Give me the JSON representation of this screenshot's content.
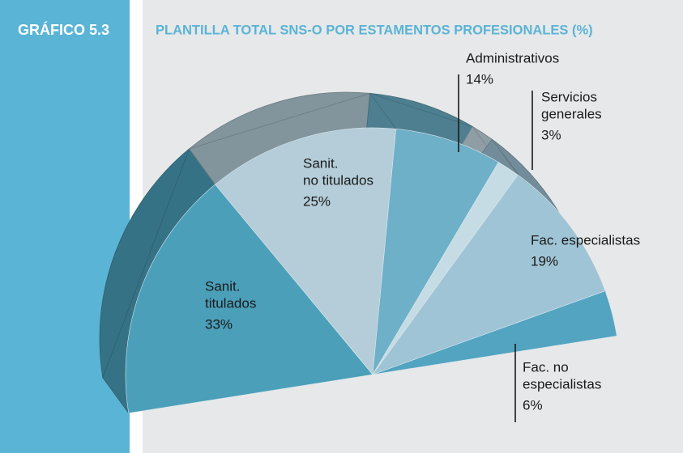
{
  "chart_data": {
    "type": "pie",
    "figure_label": "GRÁFICO 5.3",
    "title": "PLANTILLA TOTAL SNS-O POR ESTAMENTOS PROFESIONALES (%)",
    "categories": [
      [
        "Sanit.",
        "titulados"
      ],
      [
        "Sanit.",
        "no titulados"
      ],
      [
        "Administrativos"
      ],
      [
        "Servicios",
        "generales"
      ],
      [
        "Fac. especialistas"
      ],
      [
        "Fac. no",
        "especialistas"
      ]
    ],
    "values": [
      33,
      25,
      14,
      3,
      19,
      6
    ],
    "value_labels": [
      "33%",
      "25%",
      "14%",
      "3%",
      "19%",
      "6%"
    ],
    "colors": [
      "#4b9fb9",
      "#b4cdd9",
      "#6db0c8",
      "#c6dce5",
      "#9fc4d5",
      "#52a4c1"
    ]
  }
}
